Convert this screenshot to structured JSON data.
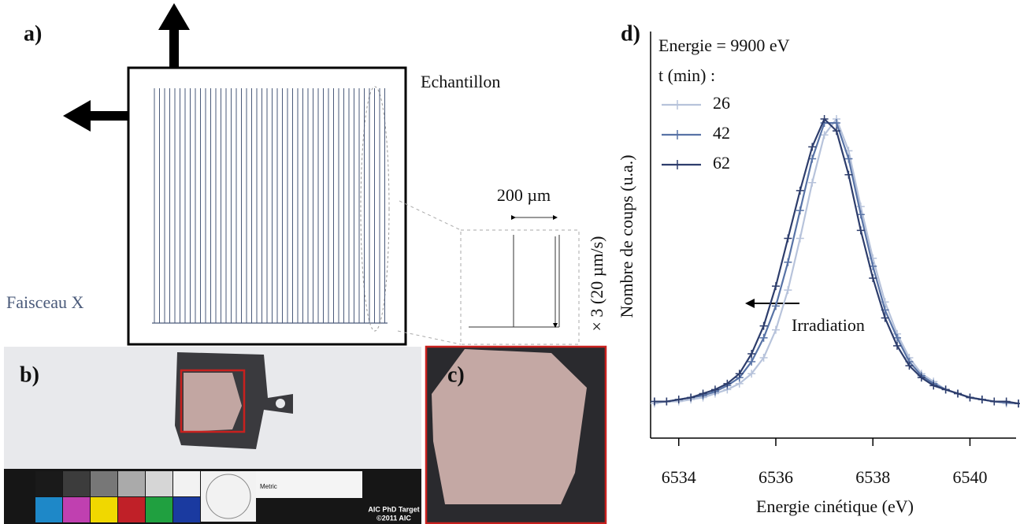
{
  "panels": {
    "a": {
      "label": "a)",
      "sample": "Echantillon",
      "beam": "Faisceau X",
      "step": "200 µm",
      "repeat": "× 3 (20 µm/s)"
    },
    "b": {
      "label": "b)",
      "target": "AIC PhD Target",
      "copyright": "©2011 AIC",
      "ruler": "Metric"
    },
    "c": {
      "label": "c)"
    },
    "d": {
      "label": "d)"
    }
  },
  "chart_data": {
    "type": "line",
    "annotations": [
      "Energie = 9900 eV",
      "t (min) :",
      "Irradiation"
    ],
    "x_label": "Energie cinétique (eV)",
    "y_label": "Nombre de coups (u.a.)",
    "x": [
      6533.5,
      6533.75,
      6534,
      6534.25,
      6534.5,
      6534.75,
      6535,
      6535.25,
      6535.5,
      6535.75,
      6536,
      6536.25,
      6536.5,
      6536.75,
      6537,
      6537.25,
      6537.5,
      6537.75,
      6538,
      6538.25,
      6538.5,
      6538.75,
      6539,
      6539.25,
      6539.5,
      6539.75,
      6540,
      6540.25,
      6540.5,
      6540.75,
      6541
    ],
    "series": [
      {
        "name": "26",
        "color": "#b7c3db",
        "values": [
          0.085,
          0.09,
          0.09,
          0.095,
          0.1,
          0.11,
          0.12,
          0.135,
          0.16,
          0.2,
          0.27,
          0.37,
          0.5,
          0.64,
          0.76,
          0.8,
          0.72,
          0.58,
          0.45,
          0.34,
          0.26,
          0.2,
          0.16,
          0.14,
          0.12,
          0.11,
          0.1,
          0.095,
          0.09,
          0.085,
          0.085
        ]
      },
      {
        "name": "42",
        "color": "#5873a6",
        "values": [
          0.09,
          0.09,
          0.095,
          0.1,
          0.105,
          0.115,
          0.13,
          0.15,
          0.19,
          0.25,
          0.33,
          0.44,
          0.57,
          0.7,
          0.79,
          0.79,
          0.7,
          0.56,
          0.43,
          0.32,
          0.25,
          0.19,
          0.155,
          0.135,
          0.12,
          0.11,
          0.1,
          0.095,
          0.09,
          0.088,
          0.085
        ]
      },
      {
        "name": "62",
        "color": "#2d3d6c",
        "values": [
          0.09,
          0.09,
          0.095,
          0.1,
          0.11,
          0.12,
          0.135,
          0.16,
          0.21,
          0.28,
          0.38,
          0.5,
          0.62,
          0.73,
          0.8,
          0.77,
          0.66,
          0.52,
          0.4,
          0.3,
          0.23,
          0.18,
          0.15,
          0.13,
          0.12,
          0.11,
          0.1,
          0.095,
          0.09,
          0.09,
          0.085
        ]
      }
    ],
    "xlim": [
      6533.42,
      6540.95
    ],
    "xticks": [
      6534,
      6536,
      6538,
      6540
    ],
    "ylim": [
      0,
      1
    ],
    "legend": "upper left"
  }
}
